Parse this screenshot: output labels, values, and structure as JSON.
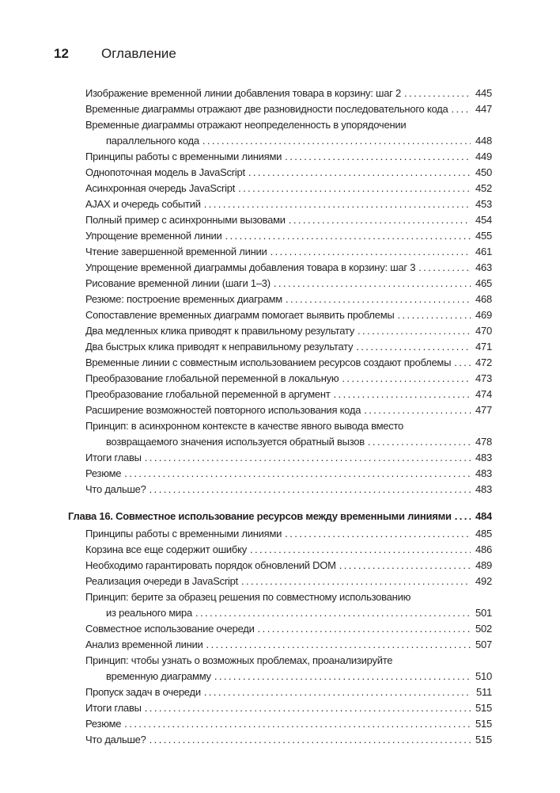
{
  "header": {
    "page_number": "12",
    "title": "Оглавление"
  },
  "sections": [
    {
      "entries": [
        {
          "lines": [
            "Изображение временной линии добавления товара в корзину: шаг 2"
          ],
          "page": "445"
        },
        {
          "lines": [
            "Временные диаграммы отражают две разновидности последовательного кода"
          ],
          "page": "447"
        },
        {
          "lines": [
            "Временные диаграммы отражают неопределенность в упорядочении",
            "параллельного кода"
          ],
          "page": "448"
        },
        {
          "lines": [
            "Принципы работы с временными линиями"
          ],
          "page": "449"
        },
        {
          "lines": [
            "Однопоточная модель в JavaScript"
          ],
          "page": "450"
        },
        {
          "lines": [
            "Асинхронная очередь JavaScript"
          ],
          "page": "452"
        },
        {
          "lines": [
            "AJAX и очередь событий"
          ],
          "page": "453"
        },
        {
          "lines": [
            "Полный пример с асинхронными вызовами"
          ],
          "page": "454"
        },
        {
          "lines": [
            "Упрощение временной линии"
          ],
          "page": "455"
        },
        {
          "lines": [
            "Чтение завершенной временной линии"
          ],
          "page": "461"
        },
        {
          "lines": [
            "Упрощение временной диаграммы добавления товара в корзину: шаг 3"
          ],
          "page": "463"
        },
        {
          "lines": [
            "Рисование временной линии (шаги 1–3)"
          ],
          "page": "465"
        },
        {
          "lines": [
            "Резюме: построение временных диаграмм"
          ],
          "page": "468"
        },
        {
          "lines": [
            "Сопоставление временных диаграмм помогает выявить проблемы"
          ],
          "page": "469"
        },
        {
          "lines": [
            "Два медленных клика приводят к правильному результату"
          ],
          "page": "470"
        },
        {
          "lines": [
            "Два быстрых клика приводят к неправильному результату"
          ],
          "page": "471"
        },
        {
          "lines": [
            "Временные линии с совместным использованием ресурсов создают проблемы"
          ],
          "page": "472"
        },
        {
          "lines": [
            "Преобразование глобальной переменной в локальную"
          ],
          "page": "473"
        },
        {
          "lines": [
            "Преобразование глобальной переменной в аргумент"
          ],
          "page": "474"
        },
        {
          "lines": [
            "Расширение возможностей повторного использования кода"
          ],
          "page": "477"
        },
        {
          "lines": [
            "Принцип: в асинхронном контексте в качестве явного вывода вместо",
            "возвращаемого значения используется обратный вызов"
          ],
          "page": "478"
        },
        {
          "lines": [
            "Итоги главы"
          ],
          "page": "483"
        },
        {
          "lines": [
            "Резюме"
          ],
          "page": "483"
        },
        {
          "lines": [
            "Что дальше?"
          ],
          "page": "483"
        }
      ]
    },
    {
      "chapter": {
        "label": "Глава 16.",
        "title": "Совместное использование ресурсов между временными линиями",
        "page": "484"
      },
      "entries": [
        {
          "lines": [
            "Принципы работы с временными линиями"
          ],
          "page": "485"
        },
        {
          "lines": [
            "Корзина все еще содержит ошибку"
          ],
          "page": "486"
        },
        {
          "lines": [
            "Необходимо гарантировать порядок обновлений DOM"
          ],
          "page": "489"
        },
        {
          "lines": [
            "Реализация очереди в JavaScript"
          ],
          "page": "492"
        },
        {
          "lines": [
            "Принцип: берите за образец решения по совместному использованию",
            "из реального мира"
          ],
          "page": "501"
        },
        {
          "lines": [
            "Совместное использование очереди"
          ],
          "page": "502"
        },
        {
          "lines": [
            "Анализ временной линии"
          ],
          "page": "507"
        },
        {
          "lines": [
            "Принцип: чтобы узнать о возможных проблемах, проанализируйте",
            "временную диаграмму"
          ],
          "page": "510"
        },
        {
          "lines": [
            "Пропуск задач в очереди"
          ],
          "page": "511"
        },
        {
          "lines": [
            "Итоги главы"
          ],
          "page": "515"
        },
        {
          "lines": [
            "Резюме"
          ],
          "page": "515"
        },
        {
          "lines": [
            "Что дальше?"
          ],
          "page": "515"
        }
      ]
    }
  ]
}
